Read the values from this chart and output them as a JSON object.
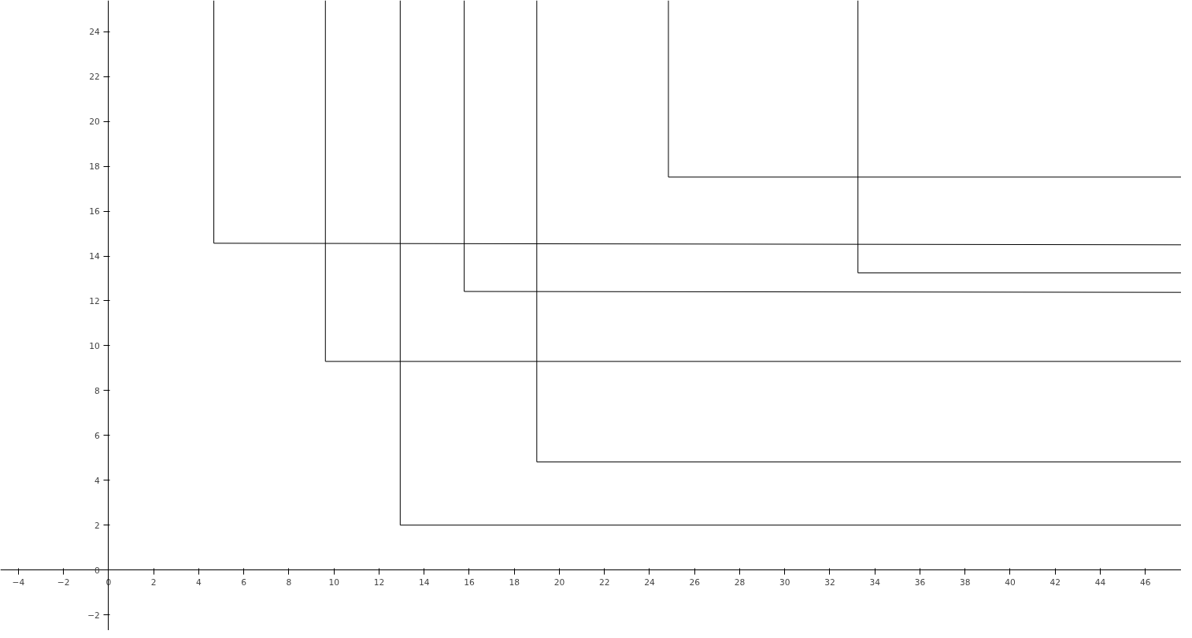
{
  "chart_data": {
    "type": "line",
    "color": "#000000",
    "marker": "none",
    "line_style": "solid",
    "xlim": [
      -4.8,
      47.6
    ],
    "ylim": [
      -2.7,
      25.4
    ],
    "xticks": [
      -4,
      -2,
      0,
      2,
      4,
      6,
      8,
      10,
      12,
      14,
      16,
      18,
      20,
      22,
      24,
      26,
      28,
      30,
      32,
      34,
      36,
      38,
      40,
      42,
      44,
      46
    ],
    "yticks": [
      -2,
      0,
      2,
      4,
      6,
      8,
      10,
      12,
      14,
      16,
      18,
      20,
      22,
      24
    ],
    "series": [
      {
        "x": [
          4.67,
          4.67,
          47.6
        ],
        "values": [
          25.4,
          14.57,
          14.5
        ]
      },
      {
        "x": [
          9.62,
          9.62,
          47.6
        ],
        "values": [
          25.4,
          9.3,
          9.3
        ]
      },
      {
        "x": [
          12.94,
          12.94,
          47.6
        ],
        "values": [
          25.4,
          2.0,
          2.0
        ]
      },
      {
        "x": [
          15.78,
          15.78,
          47.6
        ],
        "values": [
          25.4,
          12.42,
          12.38
        ]
      },
      {
        "x": [
          19.0,
          19.0,
          47.6
        ],
        "values": [
          25.4,
          4.82,
          4.82
        ]
      },
      {
        "x": [
          24.84,
          24.84,
          47.6
        ],
        "values": [
          25.4,
          17.52,
          17.52
        ]
      },
      {
        "x": [
          33.25,
          33.25,
          47.6
        ],
        "values": [
          25.4,
          13.25,
          13.25
        ]
      }
    ]
  }
}
